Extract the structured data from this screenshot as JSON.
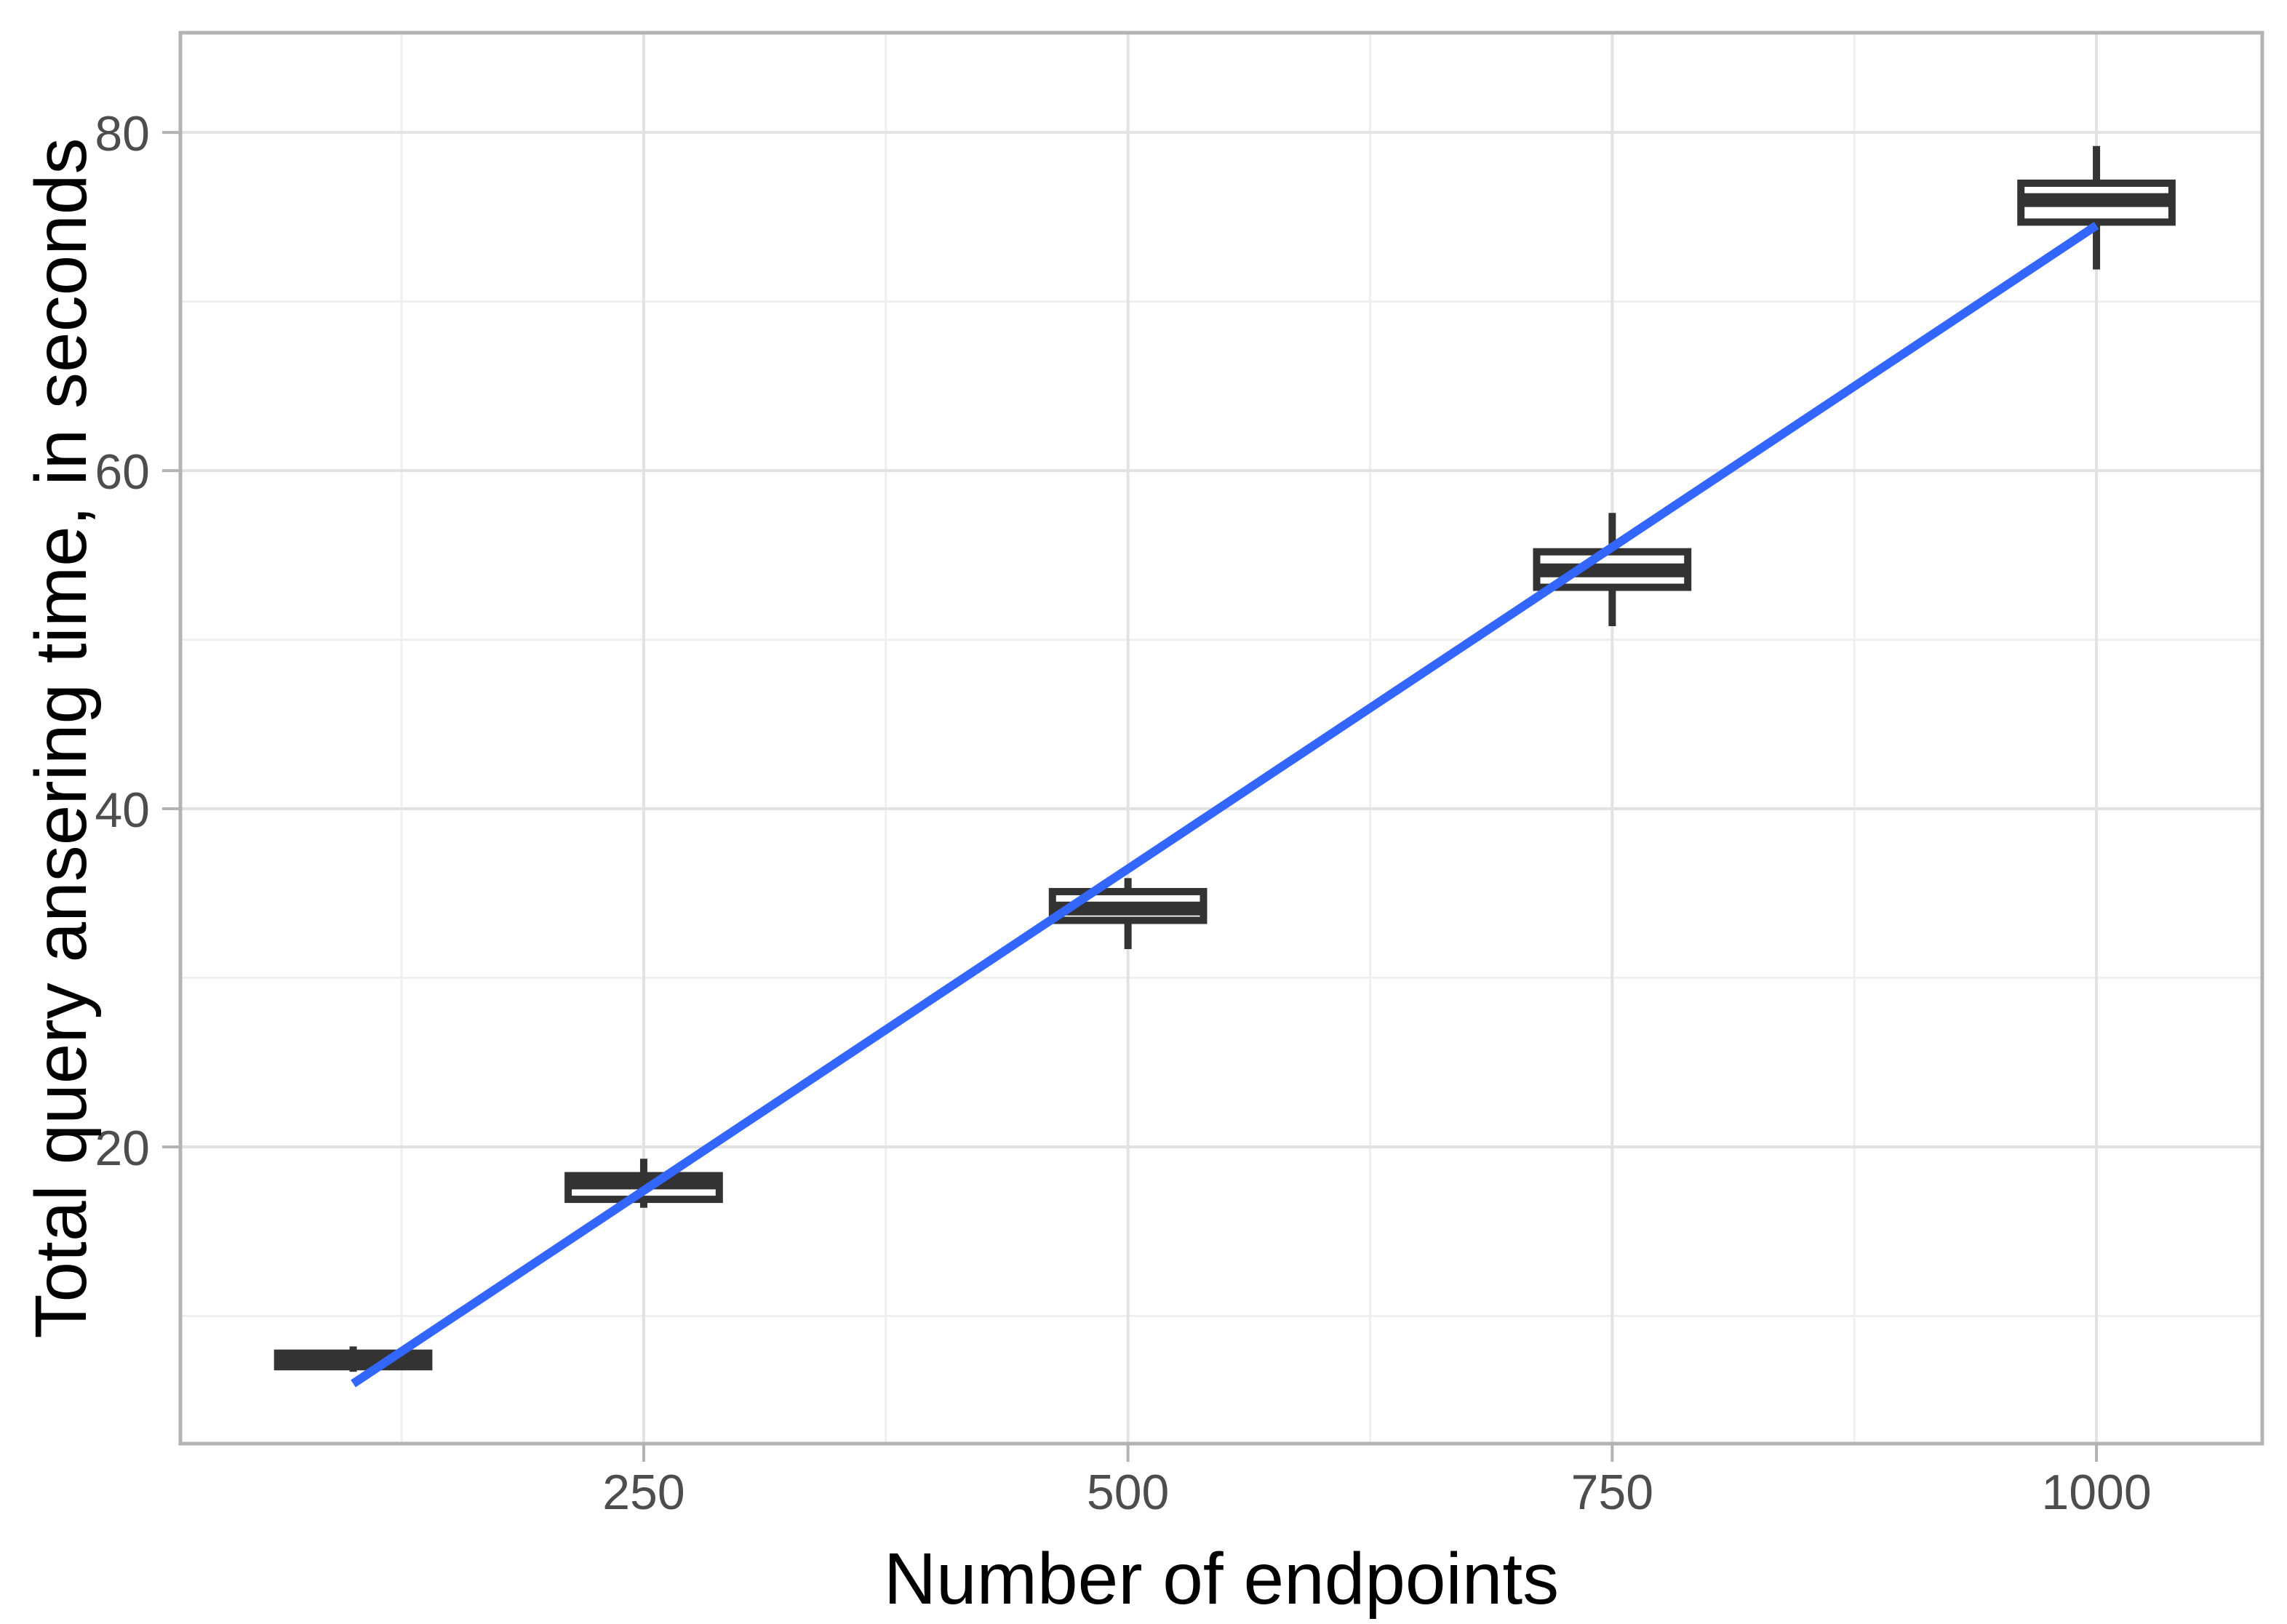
{
  "figure": {
    "xlabel": "Number of endpoints",
    "ylabel": "Total query ansering time, in seconds"
  },
  "chart_data": {
    "type": "boxplot",
    "title": "",
    "xlabel": "Number of endpoints",
    "ylabel": "Total query ansering time, in seconds",
    "x_domain": [
      10.8,
      1085.6
    ],
    "y_domain": [
      2.45,
      85.9
    ],
    "x_ticks": [
      250,
      500,
      750,
      1000
    ],
    "x_minor_gridlines": [
      125,
      375,
      625,
      875
    ],
    "y_ticks": [
      20,
      40,
      60,
      80
    ],
    "y_minor_gridlines": [
      10,
      30,
      50,
      70
    ],
    "grid": true,
    "legend": false,
    "box_width_x_units": 78,
    "boxes": [
      {
        "x": 100,
        "low": 6.7,
        "q1": 7.0,
        "median": 7.4,
        "q3": 7.8,
        "high": 8.2
      },
      {
        "x": 250,
        "low": 16.4,
        "q1": 16.9,
        "median": 17.9,
        "q3": 18.3,
        "high": 19.3
      },
      {
        "x": 500,
        "low": 31.7,
        "q1": 33.4,
        "median": 34.1,
        "q3": 35.1,
        "high": 35.9
      },
      {
        "x": 750,
        "low": 50.8,
        "q1": 53.1,
        "median": 54.1,
        "q3": 55.2,
        "high": 57.5
      },
      {
        "x": 1000,
        "low": 71.9,
        "q1": 74.7,
        "median": 76.0,
        "q3": 77.0,
        "high": 79.2
      }
    ],
    "trend_line": {
      "x1": 100,
      "y1": 6.0,
      "x2": 1000,
      "y2": 74.5
    },
    "colors": {
      "trend_line": "#3366FF",
      "box_stroke": "#333333",
      "box_fill": "#ffffff",
      "panel_border": "#b3b3b3",
      "grid_major": "#e2e2e2",
      "grid_minor": "#efefef",
      "tick_mark": "#b3b3b3",
      "tick_text": "#4d4d4d",
      "axis_title_text": "#000000",
      "background": "#ffffff"
    }
  }
}
